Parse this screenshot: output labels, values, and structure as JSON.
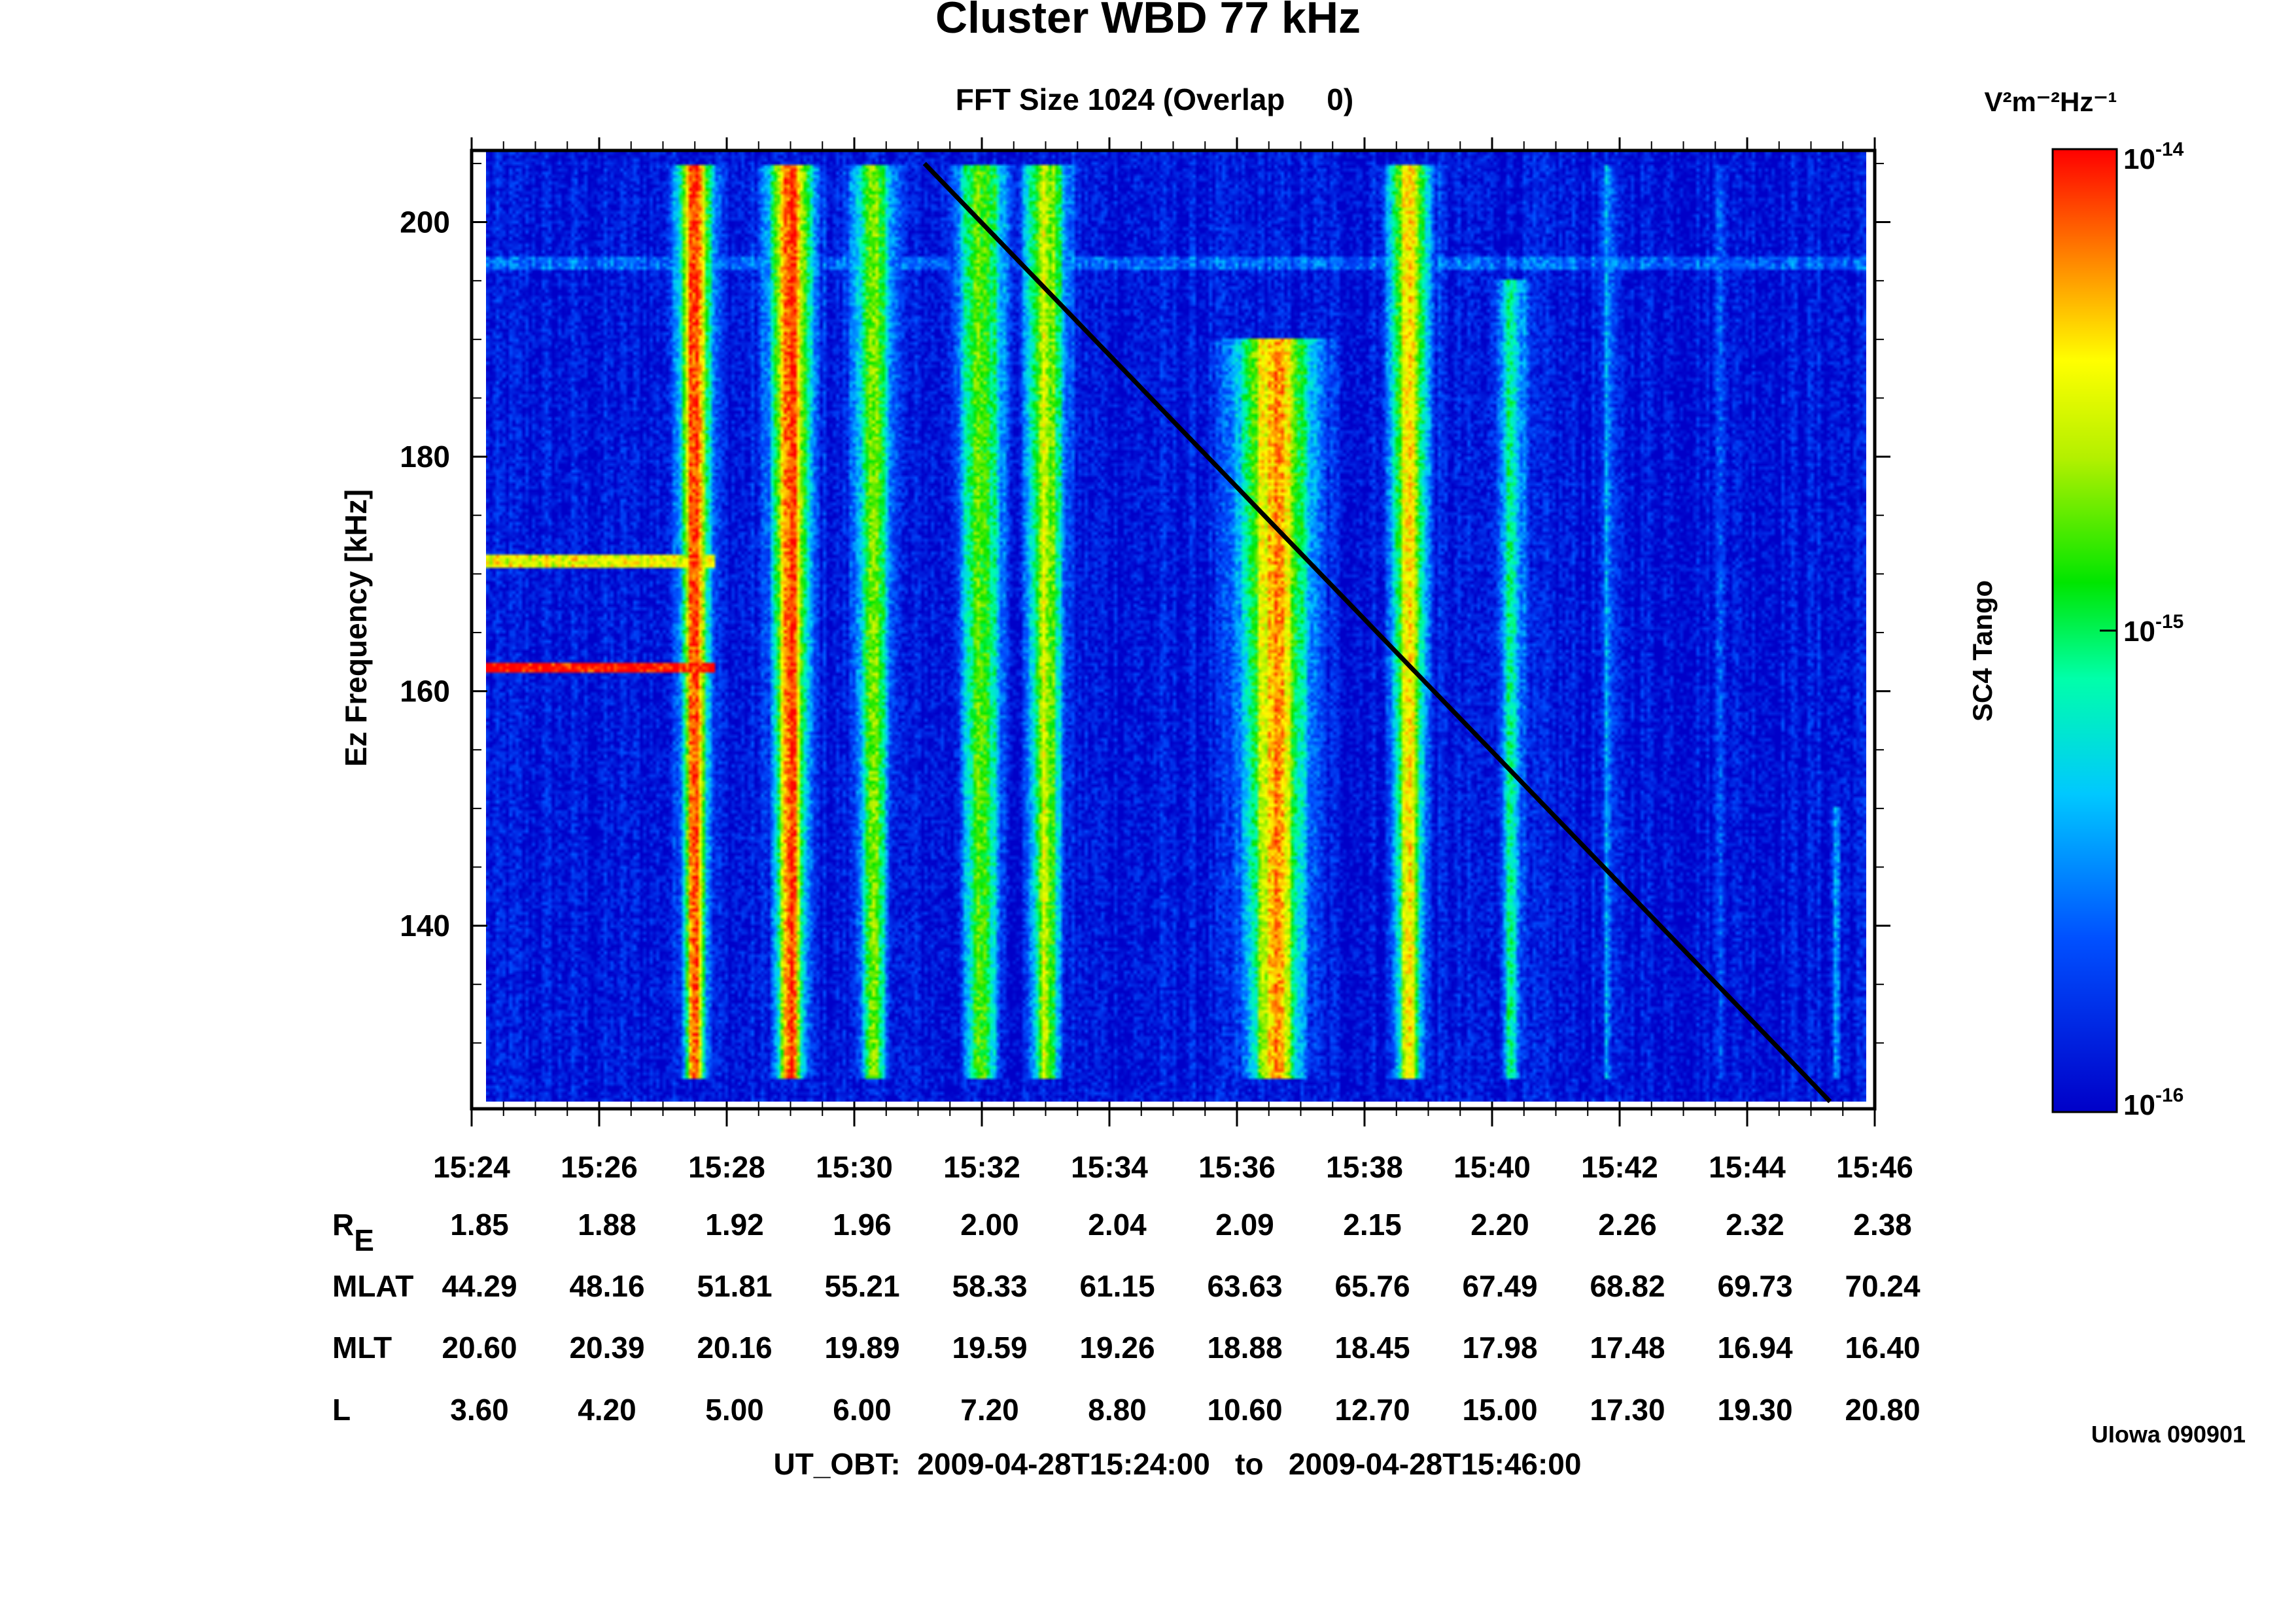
{
  "chart_data": {
    "type": "heatmap",
    "title": "Cluster WBD 77 kHz",
    "subtitle": "FFT Size 1024 (Overlap     0)",
    "ylabel": "Ez Frequency [kHz]",
    "ylim": [
      125,
      206
    ],
    "y_ticks": [
      "140",
      "160",
      "180",
      "200"
    ],
    "x_ticks": [
      "15:24",
      "15:26",
      "15:28",
      "15:30",
      "15:32",
      "15:34",
      "15:36",
      "15:38",
      "15:40",
      "15:42",
      "15:44",
      "15:46"
    ],
    "x_range_minutes": [
      0,
      22
    ],
    "colorbar": {
      "unit": "V²m⁻²Hz⁻¹",
      "label": "SC4 Tango",
      "ticks": [
        {
          "base": "10",
          "exp": "-14"
        },
        {
          "base": "10",
          "exp": "-15"
        },
        {
          "base": "10",
          "exp": "-16"
        }
      ],
      "range_log10": [
        -16,
        -14
      ]
    },
    "ephemeris": [
      {
        "label": "R",
        "sub": "E",
        "values": [
          "1.85",
          "1.88",
          "1.92",
          "1.96",
          "2.00",
          "2.04",
          "2.09",
          "2.15",
          "2.20",
          "2.26",
          "2.32",
          "2.38"
        ]
      },
      {
        "label": "MLAT",
        "sub": "",
        "values": [
          "44.29",
          "48.16",
          "51.81",
          "55.21",
          "58.33",
          "61.15",
          "63.63",
          "65.76",
          "67.49",
          "68.82",
          "69.73",
          "70.24"
        ]
      },
      {
        "label": "MLT",
        "sub": "",
        "values": [
          "20.60",
          "20.39",
          "20.16",
          "19.89",
          "19.59",
          "19.26",
          "18.88",
          "18.45",
          "17.98",
          "17.48",
          "16.94",
          "16.40"
        ]
      },
      {
        "label": "L",
        "sub": "",
        "values": [
          "3.60",
          "4.20",
          "5.00",
          "6.00",
          "7.20",
          "8.80",
          "10.60",
          "12.70",
          "15.00",
          "17.30",
          "19.30",
          "20.80"
        ]
      }
    ],
    "time_range": "UT_OBT:  2009-04-28T15:24:00   to   2009-04-28T15:46:00",
    "credit": "UIowa 090901",
    "overlay_line": {
      "x_minutes": [
        7.1,
        21.3
      ],
      "y_khz": [
        205,
        125
      ]
    },
    "emission_bands": [
      {
        "t": 3.5,
        "f_low": 127,
        "f_high": 205,
        "width": 0.35,
        "peak": -14.0
      },
      {
        "t": 5.0,
        "f_low": 127,
        "f_high": 205,
        "width": 0.45,
        "peak": -14.1
      },
      {
        "t": 6.3,
        "f_low": 127,
        "f_high": 205,
        "width": 0.55,
        "peak": -14.8
      },
      {
        "t": 8.0,
        "f_low": 127,
        "f_high": 205,
        "width": 0.65,
        "peak": -14.8
      },
      {
        "t": 9.0,
        "f_low": 127,
        "f_high": 205,
        "width": 0.5,
        "peak": -14.6
      },
      {
        "t": 12.6,
        "f_low": 127,
        "f_high": 190,
        "width": 0.9,
        "peak": -14.3
      },
      {
        "t": 14.7,
        "f_low": 127,
        "f_high": 205,
        "width": 0.45,
        "peak": -14.4
      },
      {
        "t": 16.3,
        "f_low": 127,
        "f_high": 195,
        "width": 0.45,
        "peak": -15.1
      },
      {
        "t": 17.8,
        "f_low": 127,
        "f_high": 205,
        "width": 0.3,
        "peak": -15.5
      },
      {
        "t": 19.6,
        "f_low": 127,
        "f_high": 205,
        "width": 0.3,
        "peak": -15.6
      },
      {
        "t": 21.4,
        "f_low": 127,
        "f_high": 150,
        "width": 0.2,
        "peak": -15.4
      }
    ],
    "narrowband_lines": [
      {
        "f": 162.0,
        "t_start": 0.2,
        "t_end": 3.8,
        "level": -14.0
      },
      {
        "f": 171.0,
        "t_start": 0.2,
        "t_end": 3.8,
        "level": -14.5
      },
      {
        "f": 196.5,
        "t_start": 0.2,
        "t_end": 22,
        "level": -15.6
      }
    ],
    "background_level": -15.9
  }
}
